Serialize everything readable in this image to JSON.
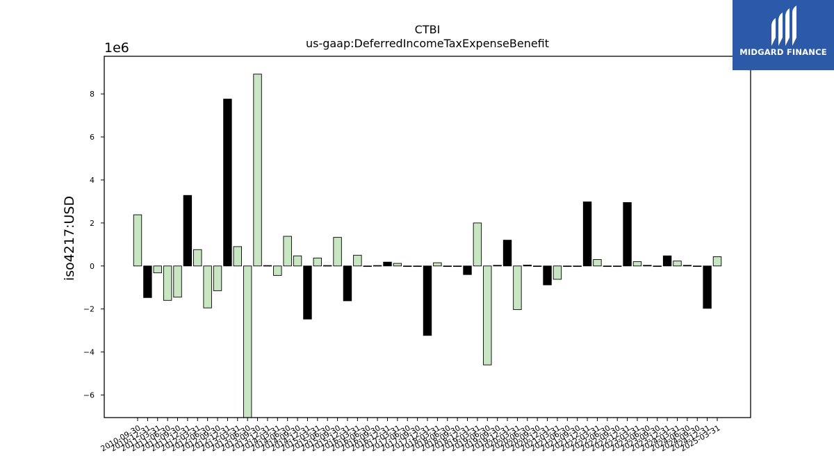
{
  "logo": {
    "text": "MIDGARD FINANCE",
    "bg_color": "#2c5aa8",
    "icon": "midgard-logo-icon"
  },
  "chart_data": {
    "type": "bar",
    "title": "CTBI",
    "subtitle": "us-gaap:DeferredIncomeTaxExpenseBenefit",
    "ylabel": "iso4217:USD",
    "xlabel": "",
    "y_multiplier_label": "1e6",
    "ylim": [
      -7.05,
      9.75
    ],
    "y_ticks": [
      -6,
      -4,
      -2,
      0,
      2,
      4,
      6,
      8
    ],
    "grid": false,
    "colors": {
      "positive_fill": "#c8e6c1",
      "negative_fill": "#000000",
      "edge": "#000000"
    },
    "categories": [
      "2010-09-30",
      "2010-12-31",
      "2011-03-31",
      "2011-06-30",
      "2011-09-30",
      "2011-12-31",
      "2012-03-31",
      "2012-06-30",
      "2012-09-30",
      "2012-12-31",
      "2013-03-31",
      "2013-06-30",
      "2013-09-30",
      "2013-12-31",
      "2014-03-31",
      "2014-06-30",
      "2014-09-30",
      "2014-12-31",
      "2015-03-31",
      "2015-06-30",
      "2015-09-30",
      "2015-12-31",
      "2016-03-31",
      "2016-06-30",
      "2016-09-30",
      "2016-12-31",
      "2017-03-31",
      "2017-06-30",
      "2017-09-30",
      "2017-12-31",
      "2018-03-31",
      "2018-06-30",
      "2018-09-30",
      "2018-12-31",
      "2019-03-31",
      "2019-06-30",
      "2019-09-30",
      "2019-12-31",
      "2020-03-31",
      "2020-06-30",
      "2020-09-30",
      "2020-12-31",
      "2021-03-31",
      "2021-06-30",
      "2021-09-30",
      "2021-12-31",
      "2022-03-31",
      "2022-06-30",
      "2022-09-30",
      "2022-12-31",
      "2023-03-31",
      "2023-06-30",
      "2023-09-30",
      "2023-12-31",
      "2024-03-31",
      "2024-06-30",
      "2024-09-30",
      "2024-12-31",
      "2025-03-31"
    ],
    "values": [
      2.38,
      -1.47,
      -0.32,
      -1.6,
      -1.45,
      3.28,
      0.76,
      -1.95,
      -1.15,
      7.76,
      0.9,
      -7.3,
      8.92,
      0.02,
      -0.44,
      1.38,
      0.47,
      -2.47,
      0.37,
      0.02,
      1.33,
      -1.62,
      0.5,
      0.0,
      0.02,
      0.18,
      0.12,
      0.0,
      0.0,
      -3.23,
      0.15,
      0.0,
      0.0,
      -0.4,
      2.0,
      -4.6,
      0.03,
      1.2,
      -2.03,
      0.04,
      0.0,
      -0.88,
      -0.62,
      0.0,
      0.0,
      2.98,
      0.3,
      0.0,
      0.0,
      2.95,
      0.2,
      0.03,
      0.0,
      0.47,
      0.23,
      0.03,
      0.0,
      -1.97,
      0.43
    ],
    "bar_fill": [
      "light",
      "dark",
      "light",
      "light",
      "light",
      "dark",
      "light",
      "light",
      "light",
      "dark",
      "light",
      "light",
      "light",
      "dark",
      "light",
      "light",
      "light",
      "dark",
      "light",
      "dark",
      "light",
      "dark",
      "light",
      "light",
      "light",
      "dark",
      "light",
      "light",
      "light",
      "dark",
      "light",
      "light",
      "light",
      "dark",
      "light",
      "light",
      "dark",
      "dark",
      "light",
      "dark",
      "light",
      "dark",
      "light",
      "light",
      "light",
      "dark",
      "light",
      "light",
      "light",
      "dark",
      "light",
      "dark",
      "light",
      "dark",
      "light",
      "dark",
      "light",
      "dark",
      "light"
    ]
  }
}
